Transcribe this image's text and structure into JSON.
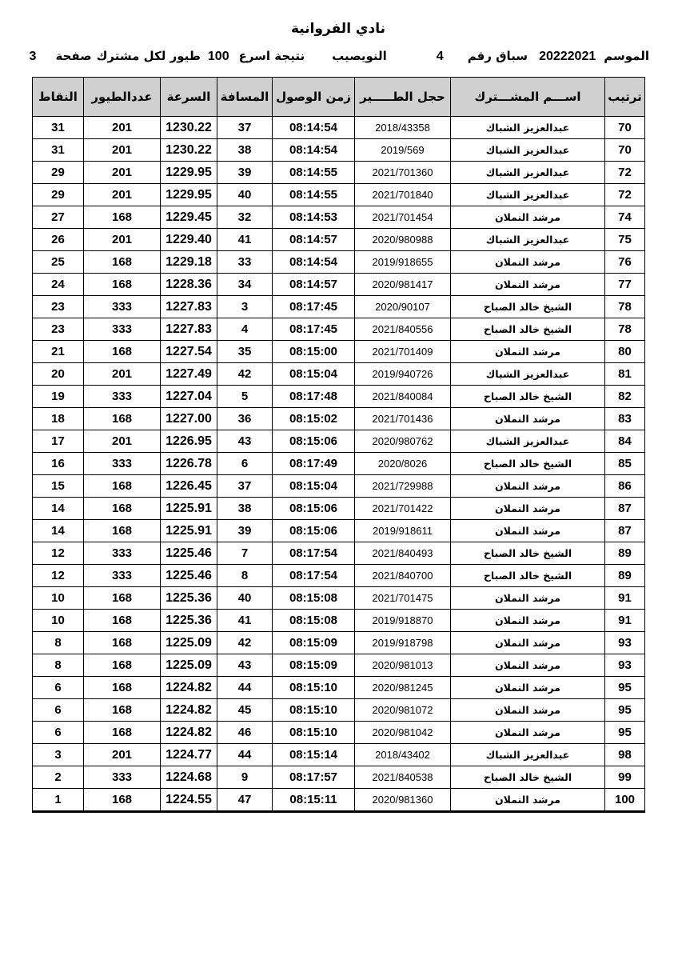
{
  "page": {
    "title": "نادي الفروانية",
    "subtitle_segments": [
      "الموسم",
      "20222021",
      "سباق رقم",
      "4",
      "النويصيب",
      "نتيجة اسرع",
      "100",
      "طيور لكل مشترك",
      "صفحة",
      "3"
    ]
  },
  "colors": {
    "header_bg": "#d0d0d0",
    "border": "#000000",
    "text": "#000000"
  },
  "table": {
    "headers": {
      "rank": "ترتيب",
      "name": "اســـم المشـــترك",
      "ring": "حجل الطـــــير",
      "arrival_time": "زمن الوصول",
      "distance": "المسافة",
      "speed": "السرعة",
      "pigeon_count": "عددالطيور",
      "points": "النقاط"
    },
    "rows": [
      {
        "rank": "70",
        "name": "عبدالعزيز الشباك",
        "ring": "2018/43358",
        "arrival_time": "08:14:54",
        "distance": "37",
        "speed": "1230.22",
        "pigeon_count": "201",
        "points": "31"
      },
      {
        "rank": "70",
        "name": "عبدالعزيز الشباك",
        "ring": "2019/569",
        "arrival_time": "08:14:54",
        "distance": "38",
        "speed": "1230.22",
        "pigeon_count": "201",
        "points": "31"
      },
      {
        "rank": "72",
        "name": "عبدالعزيز الشباك",
        "ring": "2021/701360",
        "arrival_time": "08:14:55",
        "distance": "39",
        "speed": "1229.95",
        "pigeon_count": "201",
        "points": "29"
      },
      {
        "rank": "72",
        "name": "عبدالعزيز الشباك",
        "ring": "2021/701840",
        "arrival_time": "08:14:55",
        "distance": "40",
        "speed": "1229.95",
        "pigeon_count": "201",
        "points": "29"
      },
      {
        "rank": "74",
        "name": "مرشد النملان",
        "ring": "2021/701454",
        "arrival_time": "08:14:53",
        "distance": "32",
        "speed": "1229.45",
        "pigeon_count": "168",
        "points": "27"
      },
      {
        "rank": "75",
        "name": "عبدالعزيز الشباك",
        "ring": "2020/980988",
        "arrival_time": "08:14:57",
        "distance": "41",
        "speed": "1229.40",
        "pigeon_count": "201",
        "points": "26"
      },
      {
        "rank": "76",
        "name": "مرشد النملان",
        "ring": "2019/918655",
        "arrival_time": "08:14:54",
        "distance": "33",
        "speed": "1229.18",
        "pigeon_count": "168",
        "points": "25"
      },
      {
        "rank": "77",
        "name": "مرشد النملان",
        "ring": "2020/981417",
        "arrival_time": "08:14:57",
        "distance": "34",
        "speed": "1228.36",
        "pigeon_count": "168",
        "points": "24"
      },
      {
        "rank": "78",
        "name": "الشيخ خالد الصباح",
        "ring": "2020/90107",
        "arrival_time": "08:17:45",
        "distance": "3",
        "speed": "1227.83",
        "pigeon_count": "333",
        "points": "23"
      },
      {
        "rank": "78",
        "name": "الشيخ خالد الصباح",
        "ring": "2021/840556",
        "arrival_time": "08:17:45",
        "distance": "4",
        "speed": "1227.83",
        "pigeon_count": "333",
        "points": "23"
      },
      {
        "rank": "80",
        "name": "مرشد النملان",
        "ring": "2021/701409",
        "arrival_time": "08:15:00",
        "distance": "35",
        "speed": "1227.54",
        "pigeon_count": "168",
        "points": "21"
      },
      {
        "rank": "81",
        "name": "عبدالعزيز الشباك",
        "ring": "2019/940726",
        "arrival_time": "08:15:04",
        "distance": "42",
        "speed": "1227.49",
        "pigeon_count": "201",
        "points": "20"
      },
      {
        "rank": "82",
        "name": "الشيخ خالد الصباح",
        "ring": "2021/840084",
        "arrival_time": "08:17:48",
        "distance": "5",
        "speed": "1227.04",
        "pigeon_count": "333",
        "points": "19"
      },
      {
        "rank": "83",
        "name": "مرشد النملان",
        "ring": "2021/701436",
        "arrival_time": "08:15:02",
        "distance": "36",
        "speed": "1227.00",
        "pigeon_count": "168",
        "points": "18"
      },
      {
        "rank": "84",
        "name": "عبدالعزيز الشباك",
        "ring": "2020/980762",
        "arrival_time": "08:15:06",
        "distance": "43",
        "speed": "1226.95",
        "pigeon_count": "201",
        "points": "17"
      },
      {
        "rank": "85",
        "name": "الشيخ خالد الصباح",
        "ring": "2020/8026",
        "arrival_time": "08:17:49",
        "distance": "6",
        "speed": "1226.78",
        "pigeon_count": "333",
        "points": "16"
      },
      {
        "rank": "86",
        "name": "مرشد النملان",
        "ring": "2021/729988",
        "arrival_time": "08:15:04",
        "distance": "37",
        "speed": "1226.45",
        "pigeon_count": "168",
        "points": "15"
      },
      {
        "rank": "87",
        "name": "مرشد النملان",
        "ring": "2021/701422",
        "arrival_time": "08:15:06",
        "distance": "38",
        "speed": "1225.91",
        "pigeon_count": "168",
        "points": "14"
      },
      {
        "rank": "87",
        "name": "مرشد النملان",
        "ring": "2019/918611",
        "arrival_time": "08:15:06",
        "distance": "39",
        "speed": "1225.91",
        "pigeon_count": "168",
        "points": "14"
      },
      {
        "rank": "89",
        "name": "الشيخ خالد الصباح",
        "ring": "2021/840493",
        "arrival_time": "08:17:54",
        "distance": "7",
        "speed": "1225.46",
        "pigeon_count": "333",
        "points": "12"
      },
      {
        "rank": "89",
        "name": "الشيخ خالد الصباح",
        "ring": "2021/840700",
        "arrival_time": "08:17:54",
        "distance": "8",
        "speed": "1225.46",
        "pigeon_count": "333",
        "points": "12"
      },
      {
        "rank": "91",
        "name": "مرشد النملان",
        "ring": "2021/701475",
        "arrival_time": "08:15:08",
        "distance": "40",
        "speed": "1225.36",
        "pigeon_count": "168",
        "points": "10"
      },
      {
        "rank": "91",
        "name": "مرشد النملان",
        "ring": "2019/918870",
        "arrival_time": "08:15:08",
        "distance": "41",
        "speed": "1225.36",
        "pigeon_count": "168",
        "points": "10"
      },
      {
        "rank": "93",
        "name": "مرشد النملان",
        "ring": "2019/918798",
        "arrival_time": "08:15:09",
        "distance": "42",
        "speed": "1225.09",
        "pigeon_count": "168",
        "points": "8"
      },
      {
        "rank": "93",
        "name": "مرشد النملان",
        "ring": "2020/981013",
        "arrival_time": "08:15:09",
        "distance": "43",
        "speed": "1225.09",
        "pigeon_count": "168",
        "points": "8"
      },
      {
        "rank": "95",
        "name": "مرشد النملان",
        "ring": "2020/981245",
        "arrival_time": "08:15:10",
        "distance": "44",
        "speed": "1224.82",
        "pigeon_count": "168",
        "points": "6"
      },
      {
        "rank": "95",
        "name": "مرشد النملان",
        "ring": "2020/981072",
        "arrival_time": "08:15:10",
        "distance": "45",
        "speed": "1224.82",
        "pigeon_count": "168",
        "points": "6"
      },
      {
        "rank": "95",
        "name": "مرشد النملان",
        "ring": "2020/981042",
        "arrival_time": "08:15:10",
        "distance": "46",
        "speed": "1224.82",
        "pigeon_count": "168",
        "points": "6"
      },
      {
        "rank": "98",
        "name": "عبدالعزيز الشباك",
        "ring": "2018/43402",
        "arrival_time": "08:15:14",
        "distance": "44",
        "speed": "1224.77",
        "pigeon_count": "201",
        "points": "3"
      },
      {
        "rank": "99",
        "name": "الشيخ خالد الصباح",
        "ring": "2021/840538",
        "arrival_time": "08:17:57",
        "distance": "9",
        "speed": "1224.68",
        "pigeon_count": "333",
        "points": "2"
      },
      {
        "rank": "100",
        "name": "مرشد النملان",
        "ring": "2020/981360",
        "arrival_time": "08:15:11",
        "distance": "47",
        "speed": "1224.55",
        "pigeon_count": "168",
        "points": "1"
      }
    ]
  }
}
